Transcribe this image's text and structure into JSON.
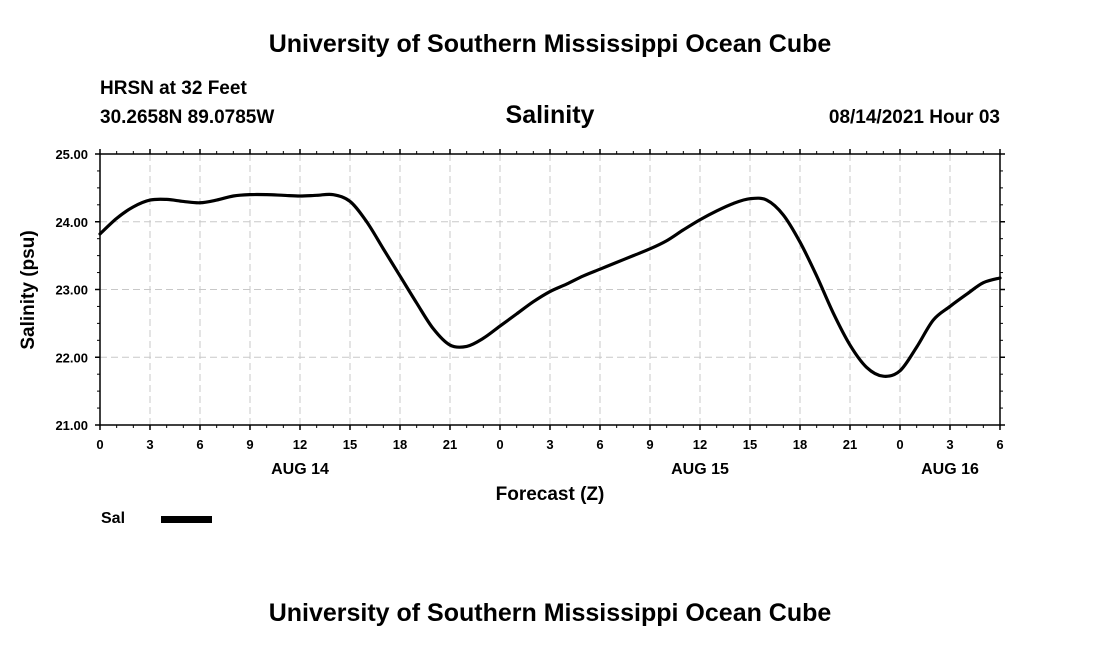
{
  "header": {
    "title": "University of Southern Mississippi Ocean Cube",
    "station": "HRSN at 32 Feet",
    "coords": "30.2658N  89.0785W",
    "datetime": "08/14/2021 Hour 03"
  },
  "footer": {
    "title": "University of Southern Mississippi Ocean Cube"
  },
  "legend": {
    "label": "Sal",
    "color": "#000000"
  },
  "chart_data": {
    "type": "line",
    "title": "Salinity",
    "xlabel": "Forecast (Z)",
    "ylabel": "Salinity (psu)",
    "ylim": [
      21.0,
      25.0
    ],
    "xlim": [
      0,
      54
    ],
    "grid": true,
    "y_ticks": [
      "21.00",
      "22.00",
      "23.00",
      "24.00",
      "25.00"
    ],
    "x_tick_labels": [
      "0",
      "3",
      "6",
      "9",
      "12",
      "15",
      "18",
      "21",
      "0",
      "3",
      "6",
      "9",
      "12",
      "15",
      "18",
      "21",
      "0",
      "3",
      "6"
    ],
    "date_labels": [
      {
        "text": "AUG 14",
        "hour": 12
      },
      {
        "text": "AUG 15",
        "hour": 36
      },
      {
        "text": "AUG 16",
        "hour": 51
      }
    ],
    "series": [
      {
        "name": "Sal",
        "color": "#000000",
        "x": [
          0,
          1,
          2,
          3,
          4,
          5,
          6,
          7,
          8,
          9,
          10,
          11,
          12,
          13,
          14,
          15,
          16,
          17,
          18,
          19,
          20,
          21,
          22,
          23,
          24,
          25,
          26,
          27,
          28,
          29,
          30,
          31,
          32,
          33,
          34,
          35,
          36,
          37,
          38,
          39,
          40,
          41,
          42,
          43,
          44,
          45,
          46,
          47,
          48,
          49,
          50,
          51,
          52,
          53,
          54
        ],
        "values": [
          23.82,
          24.05,
          24.22,
          24.32,
          24.33,
          24.3,
          24.28,
          24.32,
          24.38,
          24.4,
          24.4,
          24.39,
          24.38,
          24.39,
          24.4,
          24.3,
          24.0,
          23.6,
          23.2,
          22.8,
          22.42,
          22.18,
          22.16,
          22.28,
          22.46,
          22.64,
          22.82,
          22.97,
          23.08,
          23.2,
          23.3,
          23.4,
          23.5,
          23.6,
          23.72,
          23.88,
          24.03,
          24.16,
          24.27,
          24.34,
          24.32,
          24.1,
          23.7,
          23.2,
          22.65,
          22.18,
          21.85,
          21.72,
          21.8,
          22.15,
          22.55,
          22.75,
          22.93,
          23.1,
          23.17
        ]
      }
    ]
  }
}
